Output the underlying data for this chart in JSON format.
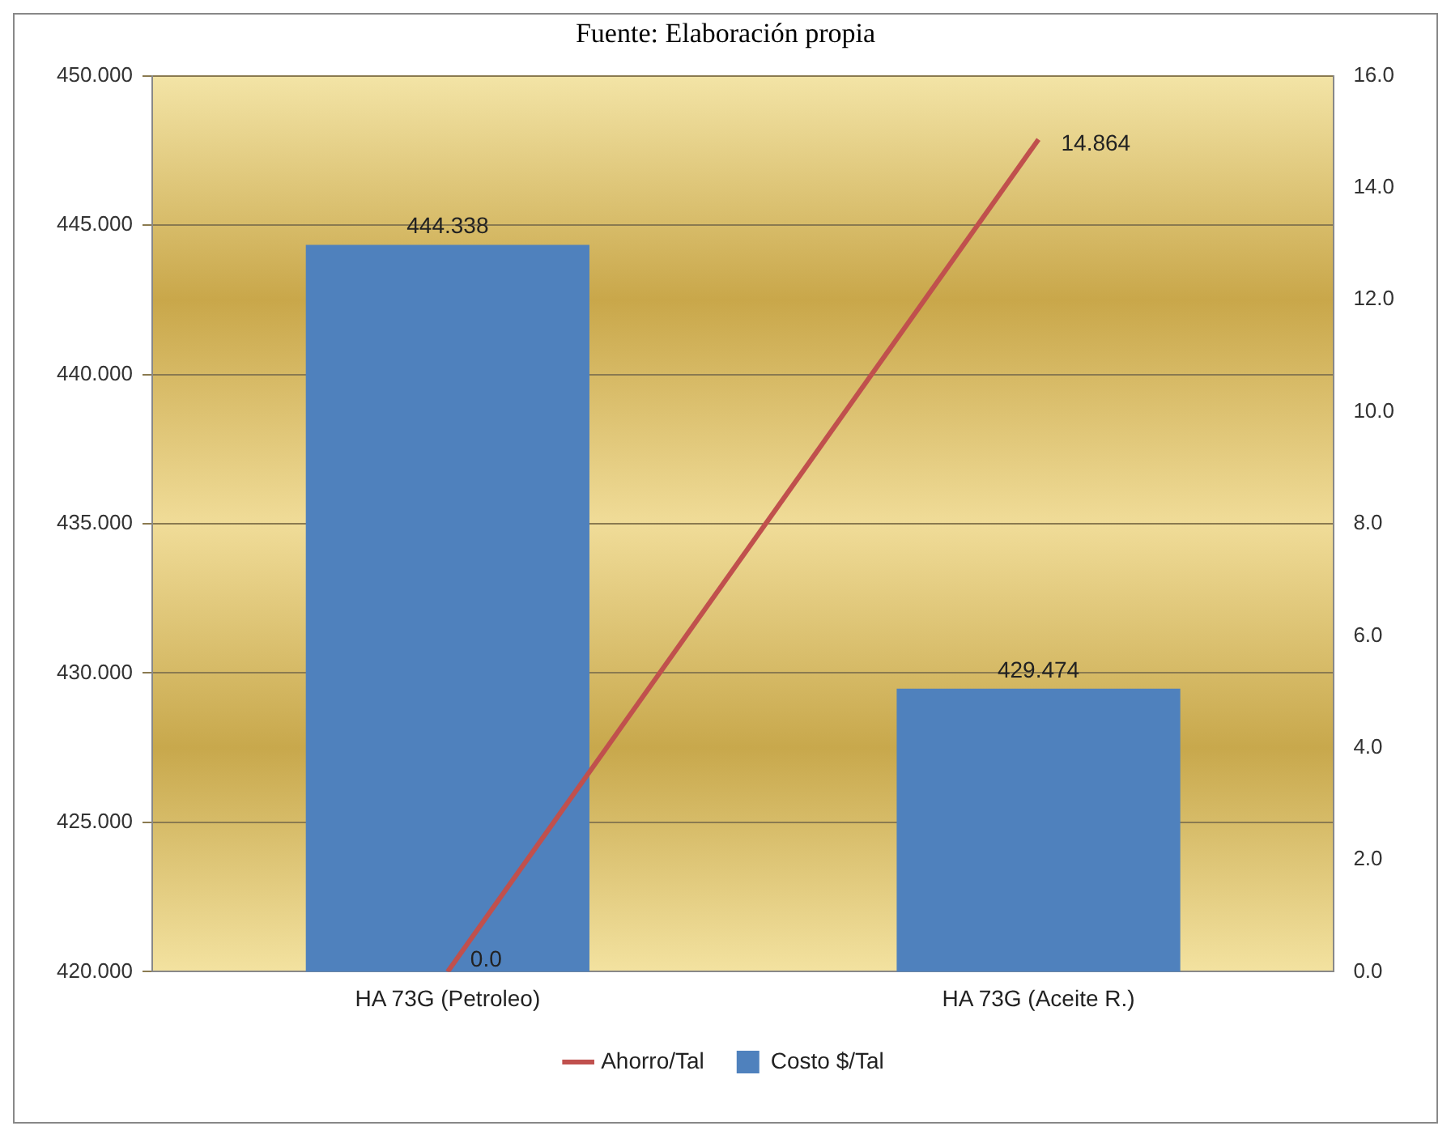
{
  "chart_data": {
    "type": "bar",
    "annotations": [
      "Fuente: Elaboración propia"
    ],
    "categories": [
      "HA 73G (Petroleo)",
      "HA 73G (Aceite R.)"
    ],
    "series": [
      {
        "name": "Costo $/Tal",
        "color": "#4f81bd",
        "values": [
          444.338,
          429.474
        ],
        "value_labels": [
          "444.338",
          "429.474"
        ]
      },
      {
        "name": "Ahorro/Tal",
        "type": "line",
        "axis": "y2",
        "color": "#c0504d",
        "values": [
          0,
          14.864
        ],
        "value_labels": [
          "0.0",
          "14.864"
        ]
      }
    ],
    "ylim": [
      420,
      450
    ],
    "yticks": [
      {
        "value": 420,
        "label": "420.000"
      },
      {
        "value": 425,
        "label": "425.000"
      },
      {
        "value": 430,
        "label": "430.000"
      },
      {
        "value": 435,
        "label": "435.000"
      },
      {
        "value": 440,
        "label": "440.000"
      },
      {
        "value": 445,
        "label": "445.000"
      },
      {
        "value": 450,
        "label": "450.000"
      }
    ],
    "y2lim": [
      0,
      16
    ],
    "y2ticks": [
      {
        "value": 0,
        "label": "0.0"
      },
      {
        "value": 2,
        "label": "2.0"
      },
      {
        "value": 4,
        "label": "4.0"
      },
      {
        "value": 6,
        "label": "6.0"
      },
      {
        "value": 8,
        "label": "8.0"
      },
      {
        "value": 10,
        "label": "10.0"
      },
      {
        "value": 12,
        "label": "12.0"
      },
      {
        "value": 14,
        "label": "14.0"
      },
      {
        "value": 16,
        "label": "16.0"
      }
    ],
    "grid": "y",
    "legend": "bottom"
  }
}
